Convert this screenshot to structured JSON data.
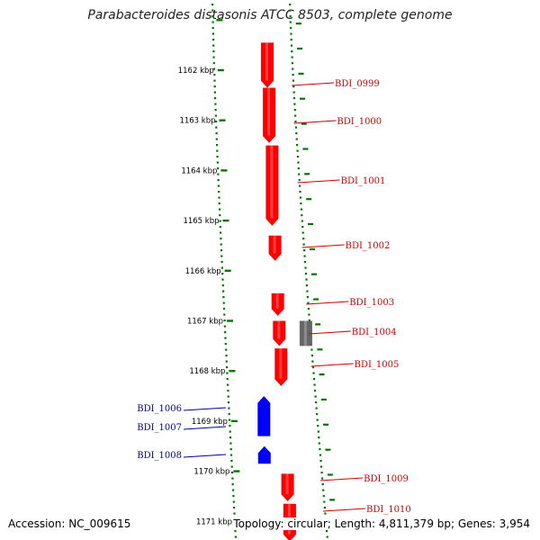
{
  "title": "Parabacteroides distasonis ATCC 8503, complete genome",
  "accession_text": "Accession: NC_009615",
  "summary_text": "Topology: circular; Length: 4,811,379 bp; Genes: 3,954",
  "colors": {
    "forward_gene": "#ff0000",
    "reverse_gene": "#0000ff",
    "other_feature": "#666666",
    "forward_label": "#cc0000",
    "reverse_label": "#000099",
    "ticks": "#007700",
    "backbone": "#808080"
  },
  "axis": {
    "unit": "kbp",
    "ticks": [
      {
        "kbp": 1162,
        "label": "1162 kbp"
      },
      {
        "kbp": 1163,
        "label": "1163 kbp"
      },
      {
        "kbp": 1164,
        "label": "1164 kbp"
      },
      {
        "kbp": 1165,
        "label": "1165 kbp"
      },
      {
        "kbp": 1166,
        "label": "1166 kbp"
      },
      {
        "kbp": 1167,
        "label": "1167 kbp"
      },
      {
        "kbp": 1168,
        "label": "1168 kbp"
      },
      {
        "kbp": 1169,
        "label": "1169 kbp"
      },
      {
        "kbp": 1170,
        "label": "1170 kbp"
      },
      {
        "kbp": 1171,
        "label": "1171 kbp"
      }
    ]
  },
  "genes": [
    {
      "label": "BDI_0999",
      "strand": "+",
      "start_kbp": 1161.45,
      "end_kbp": 1162.35
    },
    {
      "label": "BDI_1000",
      "strand": "+",
      "start_kbp": 1162.35,
      "end_kbp": 1163.45
    },
    {
      "label": "BDI_1001",
      "strand": "+",
      "start_kbp": 1163.5,
      "end_kbp": 1165.1
    },
    {
      "label": "BDI_1002",
      "strand": "+",
      "start_kbp": 1165.3,
      "end_kbp": 1165.8
    },
    {
      "label": "BDI_1003",
      "strand": "+",
      "start_kbp": 1166.45,
      "end_kbp": 1166.9
    },
    {
      "label": "BDI_1004",
      "strand": "+",
      "start_kbp": 1167.0,
      "end_kbp": 1167.5
    },
    {
      "label": "BDI_1005",
      "strand": "+",
      "start_kbp": 1167.55,
      "end_kbp": 1168.3
    },
    {
      "label": "BDI_1006",
      "strand": "-",
      "start_kbp": 1168.5,
      "end_kbp": 1169.3
    },
    {
      "label": "BDI_1007",
      "strand": "-",
      "start_kbp": 1168.5,
      "end_kbp": 1169.3
    },
    {
      "label": "BDI_1008",
      "strand": "-",
      "start_kbp": 1169.5,
      "end_kbp": 1169.85
    },
    {
      "label": "BDI_1009",
      "strand": "+",
      "start_kbp": 1170.05,
      "end_kbp": 1170.6
    },
    {
      "label": "BDI_1010",
      "strand": "+",
      "start_kbp": 1170.65,
      "end_kbp": 1171.4
    }
  ],
  "other_features": [
    {
      "strand": "+",
      "start_kbp": 1167.0,
      "end_kbp": 1167.5
    }
  ]
}
